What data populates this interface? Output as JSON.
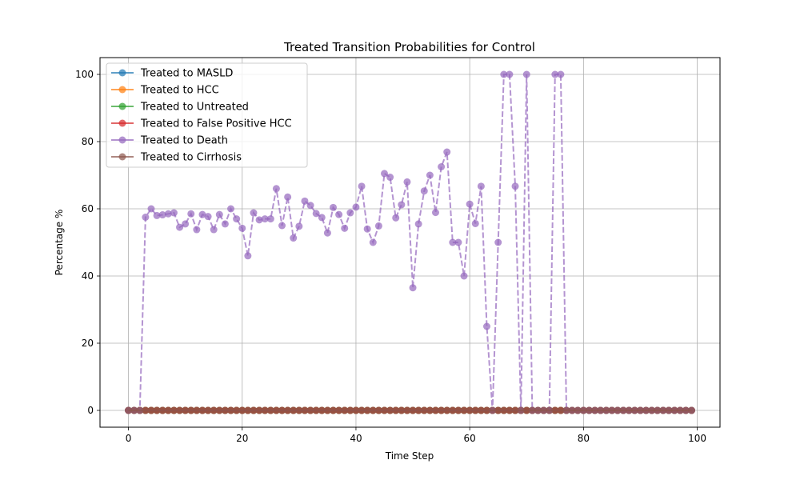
{
  "chart_data": {
    "type": "line",
    "title": "Treated Transition Probabilities for Control",
    "xlabel": "Time Step",
    "ylabel": "Percentage %",
    "xlim": [
      -5,
      104
    ],
    "ylim": [
      -5,
      105
    ],
    "xticks": [
      0,
      20,
      40,
      60,
      80,
      100
    ],
    "yticks": [
      0,
      20,
      40,
      60,
      80,
      100
    ],
    "grid": true,
    "legend_position": "upper-left",
    "x_range": [
      0,
      99
    ],
    "series": [
      {
        "name": "Treated to MASLD",
        "color": "#1f77b4",
        "line_style": "solid",
        "values": "all-zero"
      },
      {
        "name": "Treated to HCC",
        "color": "#ff7f0e",
        "line_style": "solid",
        "values": "all-zero"
      },
      {
        "name": "Treated to Untreated",
        "color": "#2ca02c",
        "line_style": "solid",
        "values": "all-zero"
      },
      {
        "name": "Treated to False Positive HCC",
        "color": "#d62728",
        "line_style": "solid",
        "values": "all-zero"
      },
      {
        "name": "Treated to Death",
        "color": "#9467bd",
        "line_style": "dashed",
        "values": [
          0,
          0,
          0,
          57.5,
          60,
          58,
          58.2,
          58.5,
          58.8,
          54.5,
          55.5,
          58.5,
          53.8,
          58.3,
          57.7,
          53.8,
          58.3,
          55.5,
          60,
          57,
          54.2,
          46,
          58.8,
          56.7,
          57,
          57,
          66,
          55,
          63.5,
          51.3,
          54.8,
          62.3,
          61,
          58.6,
          57.4,
          52.8,
          60.4,
          58.3,
          54.2,
          58.8,
          60.5,
          66.7,
          54,
          50,
          54.9,
          70.5,
          69.4,
          57.3,
          61.2,
          68,
          36.5,
          55.5,
          65.3,
          70,
          58.9,
          72.5,
          76.9,
          50,
          50,
          40,
          61.4,
          55.6,
          66.7,
          25,
          0,
          50,
          100,
          100,
          66.7,
          0,
          100,
          0,
          0,
          0,
          0,
          100,
          100,
          0,
          0,
          0,
          0,
          0,
          0,
          0,
          0,
          0,
          0,
          0,
          0,
          0,
          0,
          0,
          0,
          0,
          0,
          0,
          0,
          0,
          0,
          0
        ]
      },
      {
        "name": "Treated to Cirrhosis",
        "color": "#8c564b",
        "line_style": "solid",
        "values": "all-zero"
      }
    ]
  }
}
